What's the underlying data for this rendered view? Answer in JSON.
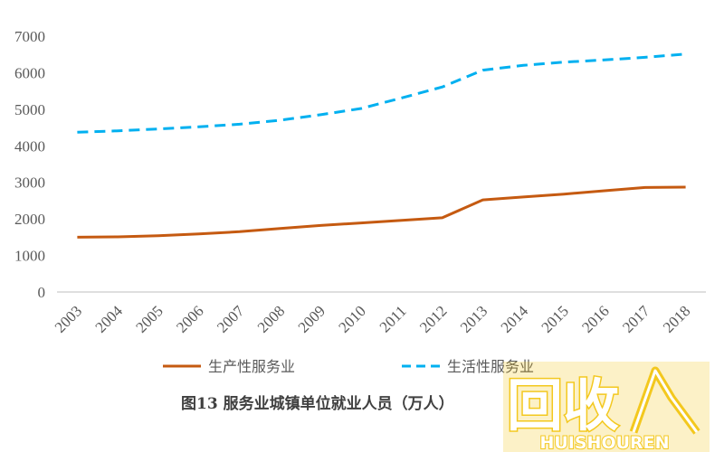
{
  "caption": "图13 服务业城镇单位就业人员（万人）",
  "watermark": {
    "logo_text": "回收",
    "brand": "HUISHOUREN",
    "color": "#f2c100"
  },
  "chart_data": {
    "type": "line",
    "x": [
      "2003",
      "2004",
      "2005",
      "2006",
      "2007",
      "2008",
      "2009",
      "2010",
      "2011",
      "2012",
      "2013",
      "2014",
      "2015",
      "2016",
      "2017",
      "2018"
    ],
    "yticks": [
      "0",
      "1000",
      "2000",
      "3000",
      "4000",
      "5000",
      "6000",
      "7000"
    ],
    "ylim": [
      0,
      7000
    ],
    "grid": false,
    "legend_position": "bottom",
    "series": [
      {
        "name": "生产性服务业",
        "color": "#c55a11",
        "style": "solid",
        "values": [
          1500,
          1510,
          1540,
          1590,
          1650,
          1740,
          1820,
          1890,
          1960,
          2030,
          2520,
          2600,
          2680,
          2770,
          2860,
          2870
        ]
      },
      {
        "name": "生活性服务业",
        "color": "#00b0f0",
        "style": "dashed",
        "values": [
          4370,
          4410,
          4460,
          4520,
          4590,
          4700,
          4850,
          5020,
          5310,
          5610,
          6070,
          6200,
          6290,
          6350,
          6420,
          6510
        ]
      }
    ]
  }
}
